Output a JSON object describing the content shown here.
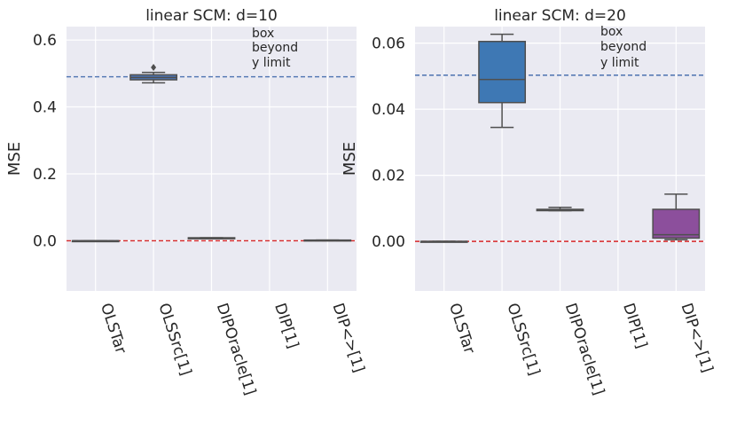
{
  "chart_data": [
    {
      "type": "box",
      "title": "linear SCM: d=10",
      "ylabel": "MSE",
      "xlabel": "",
      "ylim": [
        -0.15,
        0.64
      ],
      "yticks": [
        0.0,
        0.2,
        0.4,
        0.6
      ],
      "ytick_labels": [
        "0.0",
        "0.2",
        "0.4",
        "0.6"
      ],
      "categories": [
        "OLSTar",
        "OLSSrc[1]",
        "DIPOracle[1]",
        "DIP[1]",
        "DIP<>[1]"
      ],
      "boxes": [
        {
          "name": "OLSTar",
          "q1": 0.0,
          "median": 0.0,
          "q3": 0.0,
          "whisker_low": 0.0,
          "whisker_high": 0.0,
          "outliers": [],
          "color": "#c44e52"
        },
        {
          "name": "OLSSrc[1]",
          "q1": 0.481,
          "median": 0.488,
          "q3": 0.496,
          "whisker_low": 0.472,
          "whisker_high": 0.503,
          "outliers": [
            0.518
          ],
          "color": "#4c72b0"
        },
        {
          "name": "DIPOracle[1]",
          "q1": 0.006,
          "median": 0.007,
          "q3": 0.009,
          "whisker_low": 0.006,
          "whisker_high": 0.009,
          "outliers": [],
          "color": "#dd8452"
        },
        {
          "name": "DIP[1]",
          "q1": null,
          "median": null,
          "q3": null,
          "whisker_low": null,
          "whisker_high": null,
          "outliers": [],
          "color": "#55a868"
        },
        {
          "name": "DIP<>[1]",
          "q1": 0.001,
          "median": 0.001,
          "q3": 0.002,
          "whisker_low": 0.001,
          "whisker_high": 0.002,
          "outliers": [],
          "color": "#8172b3"
        }
      ],
      "hlines": [
        {
          "y": 0.49,
          "style": "dashed",
          "color": "#4c72b0"
        },
        {
          "y": 0.0,
          "style": "dashed",
          "color": "#d62728"
        }
      ],
      "annotation": [
        "box",
        "beyond",
        "y limit"
      ]
    },
    {
      "type": "box",
      "title": "linear SCM: d=20",
      "ylabel": "MSE",
      "xlabel": "",
      "ylim": [
        -0.015,
        0.065
      ],
      "yticks": [
        0.0,
        0.02,
        0.04,
        0.06
      ],
      "ytick_labels": [
        "0.00",
        "0.02",
        "0.04",
        "0.06"
      ],
      "categories": [
        "OLSTar",
        "OLSSrc[1]",
        "DIPOracle[1]",
        "DIP[1]",
        "DIP<>[1]"
      ],
      "boxes": [
        {
          "name": "OLSTar",
          "q1": 0.0,
          "median": 0.0,
          "q3": 0.0,
          "whisker_low": 0.0,
          "whisker_high": 0.0,
          "outliers": [],
          "color": "#c44e52"
        },
        {
          "name": "OLSSrc[1]",
          "q1": 0.042,
          "median": 0.049,
          "q3": 0.0605,
          "whisker_low": 0.0345,
          "whisker_high": 0.0627,
          "outliers": [],
          "color": "#3e78b4"
        },
        {
          "name": "DIPOracle[1]",
          "q1": 0.0093,
          "median": 0.0094,
          "q3": 0.0097,
          "whisker_low": 0.0093,
          "whisker_high": 0.0103,
          "outliers": [],
          "color": "#dd8452"
        },
        {
          "name": "DIP[1]",
          "q1": null,
          "median": null,
          "q3": null,
          "whisker_low": null,
          "whisker_high": null,
          "outliers": [],
          "color": "#55a868"
        },
        {
          "name": "DIP<>[1]",
          "q1": 0.001,
          "median": 0.002,
          "q3": 0.0097,
          "whisker_low": 0.0005,
          "whisker_high": 0.0143,
          "outliers": [],
          "color": "#8c4f9c"
        }
      ],
      "hlines": [
        {
          "y": 0.0503,
          "style": "dashed",
          "color": "#4c72b0"
        },
        {
          "y": 0.0,
          "style": "dashed",
          "color": "#d62728"
        }
      ],
      "annotation": [
        "box",
        "beyond",
        "y limit"
      ]
    }
  ]
}
